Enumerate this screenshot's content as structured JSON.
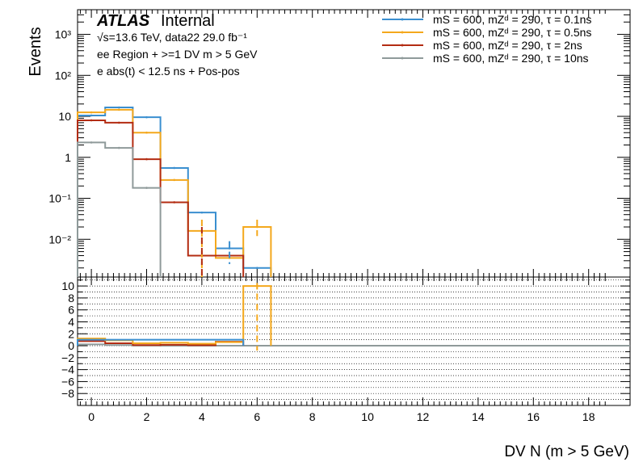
{
  "chart_data": [
    {
      "type": "line",
      "title": "",
      "xlabel": "DV N (m > 5 GeV)",
      "ylabel": "Events",
      "yscale": "log",
      "xlim": [
        -0.5,
        19.5
      ],
      "ylim": [
        0.0012,
        4000
      ],
      "ytick_labels": [
        "10⁻²",
        "10⁻¹",
        "1",
        "10",
        "10²",
        "10³"
      ],
      "ytick_values": [
        0.01,
        0.1,
        1,
        10,
        100,
        1000
      ],
      "annotations": {
        "atlas": "ATLAS",
        "internal": "Internal",
        "lines": [
          "√s=13.6 TeV, data22 29.0 fb⁻¹",
          "ee Region + >=1 DV m > 5 GeV",
          "e abs(t) < 12.5 ns + Pos-pos"
        ]
      },
      "legend_position": "top-right",
      "series": [
        {
          "name": "mS = 600, mZᵈ = 290, τ = 0.1ns",
          "color": "#3a8fd0",
          "bins": [
            0,
            1,
            2,
            3,
            4,
            5,
            6
          ],
          "values": [
            10.5,
            16.5,
            9.5,
            0.55,
            0.045,
            0.006,
            0.002
          ]
        },
        {
          "name": "mS = 600, mZᵈ = 290, τ = 0.5ns",
          "color": "#f4a81c",
          "bins": [
            0,
            1,
            2,
            3,
            4,
            5,
            6
          ],
          "values": [
            12.5,
            14.5,
            4.0,
            0.28,
            0.016,
            0.0035,
            0.02
          ]
        },
        {
          "name": "mS = 600, mZᵈ = 290, τ = 2ns",
          "color": "#b32c12",
          "bins": [
            0,
            1,
            2,
            3,
            4,
            5
          ],
          "values": [
            8.0,
            7.0,
            0.9,
            0.08,
            0.004,
            0.004
          ]
        },
        {
          "name": "mS = 600, mZᵈ = 290, τ = 10ns",
          "color": "#8f9a9a",
          "bins": [
            0,
            1,
            2
          ],
          "values": [
            2.3,
            1.7,
            0.18
          ]
        }
      ]
    },
    {
      "type": "line",
      "title": "",
      "xlabel": "DV N (m > 5 GeV)",
      "ylabel": "",
      "xlim": [
        -0.5,
        19.5
      ],
      "ylim": [
        -10,
        11.5
      ],
      "xtick_labels": [
        "0",
        "2",
        "4",
        "6",
        "8",
        "10",
        "12",
        "14",
        "16",
        "18"
      ],
      "ytick_labels": [
        "10",
        "8",
        "6",
        "4",
        "2",
        "0",
        "−2",
        "−4",
        "−6",
        "−8"
      ],
      "ytick_values": [
        10,
        8,
        6,
        4,
        2,
        0,
        -2,
        -4,
        -6,
        -8
      ],
      "grid": true,
      "series": [
        {
          "name": "",
          "color": "#3a8fd0",
          "bins": [
            0,
            1,
            2,
            3,
            4,
            5
          ],
          "values": [
            1.0,
            1.0,
            1.0,
            1.0,
            1.0,
            1.0
          ]
        },
        {
          "name": "",
          "color": "#f4a81c",
          "bins": [
            0,
            1,
            2,
            3,
            4,
            5,
            6
          ],
          "values": [
            1.2,
            0.9,
            0.42,
            0.5,
            0.35,
            0.6,
            10.0
          ]
        },
        {
          "name": "",
          "color": "#b32c12",
          "bins": [
            0,
            1,
            2,
            3,
            4,
            5
          ],
          "values": [
            0.76,
            0.42,
            0.1,
            0.15,
            0.09,
            0.67
          ]
        },
        {
          "name": "",
          "color": "#8f9a9a",
          "bins": [
            0,
            1,
            2,
            3,
            4,
            5,
            6,
            7,
            8,
            9,
            10,
            11,
            12,
            13,
            14,
            15,
            16,
            17,
            18,
            19
          ],
          "values": [
            0.22,
            0.1,
            0.02,
            0,
            0,
            0,
            0,
            0,
            0,
            0,
            0,
            0,
            0,
            0,
            0,
            0,
            0,
            0,
            0,
            0
          ]
        }
      ]
    }
  ]
}
